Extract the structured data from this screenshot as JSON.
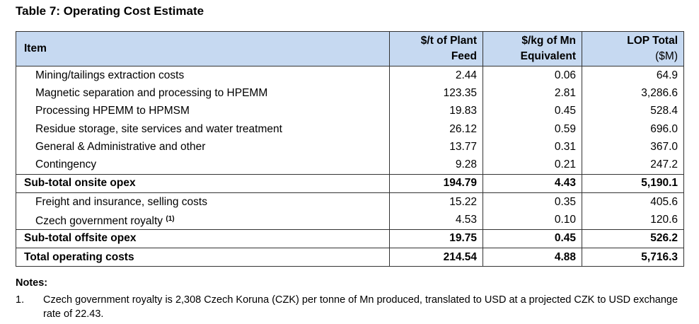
{
  "title": "Table 7: Operating Cost Estimate",
  "columns": {
    "item": "Item",
    "per_tonne_line1": "$/t of Plant",
    "per_tonne_line2": "Feed",
    "per_kg_line1": "$/kg of Mn",
    "per_kg_line2": "Equivalent",
    "lop_line1": "LOP Total",
    "lop_line2": "($M)"
  },
  "rows": [
    {
      "item": "Mining/tailings extraction costs",
      "per_tonne": "2.44",
      "per_kg": "0.06",
      "lop": "64.9"
    },
    {
      "item": "Magnetic separation and processing to HPEMM",
      "per_tonne": "123.35",
      "per_kg": "2.81",
      "lop": "3,286.6"
    },
    {
      "item": "Processing HPEMM to HPMSM",
      "per_tonne": "19.83",
      "per_kg": "0.45",
      "lop": "528.4"
    },
    {
      "item": "Residue storage, site services and water treatment",
      "per_tonne": "26.12",
      "per_kg": "0.59",
      "lop": "696.0"
    },
    {
      "item": "General & Administrative and other",
      "per_tonne": "13.77",
      "per_kg": "0.31",
      "lop": "367.0"
    },
    {
      "item": "Contingency",
      "per_tonne": "9.28",
      "per_kg": "0.21",
      "lop": "247.2"
    },
    {
      "item": "Sub-total onsite opex",
      "per_tonne": "194.79",
      "per_kg": "4.43",
      "lop": "5,190.1"
    },
    {
      "item": "Freight and insurance, selling costs",
      "per_tonne": "15.22",
      "per_kg": "0.35",
      "lop": "405.6"
    },
    {
      "item": "Czech government royalty",
      "footnote": "(1)",
      "per_tonne": "4.53",
      "per_kg": "0.10",
      "lop": "120.6"
    },
    {
      "item": "Sub-total offsite opex",
      "per_tonne": "19.75",
      "per_kg": "0.45",
      "lop": "526.2"
    },
    {
      "item": "Total operating costs",
      "per_tonne": "214.54",
      "per_kg": "4.88",
      "lop": "5,716.3"
    }
  ],
  "notes": {
    "heading": "Notes:",
    "items": [
      {
        "number": "1.",
        "text": "Czech government royalty is 2,308 Czech Koruna (CZK) per tonne of Mn produced, translated to USD at a projected CZK to USD exchange rate of 22.43."
      }
    ]
  }
}
